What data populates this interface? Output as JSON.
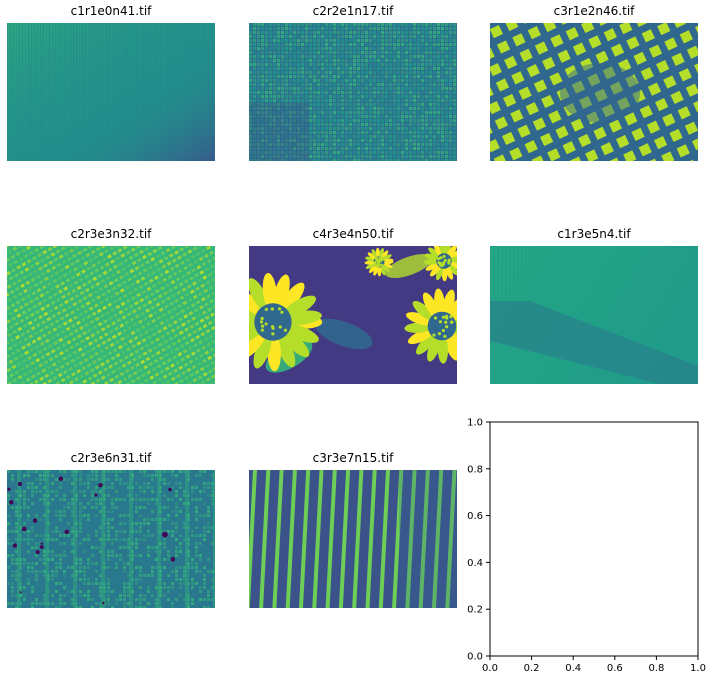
{
  "panels": [
    {
      "title": "c1r1e0n41.tif",
      "pattern": "linen-plain",
      "colors": [
        "#21908c",
        "#2a788e",
        "#35b779",
        "#3b528b"
      ]
    },
    {
      "title": "c2r2e1n17.tif",
      "pattern": "weave-grid",
      "colors": [
        "#2c728e",
        "#1f9e89",
        "#35b779",
        "#3b528b"
      ]
    },
    {
      "title": "c3r1e2n46.tif",
      "pattern": "gingham-checks",
      "colors": [
        "#31688e",
        "#6ece58",
        "#b5de2b",
        "#3e4989"
      ]
    },
    {
      "title": "c2r3e3n32.tif",
      "pattern": "burlap-weave",
      "colors": [
        "#35b779",
        "#6ece58",
        "#1f9e89",
        "#b5de2b"
      ]
    },
    {
      "title": "c4r3e4n50.tif",
      "pattern": "sunflowers",
      "colors": [
        "#443983",
        "#b5de2b",
        "#35b779",
        "#fde725",
        "#31688e",
        "#440154"
      ]
    },
    {
      "title": "c1r3e5n4.tif",
      "pattern": "diagonal-shade",
      "colors": [
        "#22a884",
        "#2a788e",
        "#1f9e89",
        "#3b528b"
      ]
    },
    {
      "title": "c2r3e6n31.tif",
      "pattern": "canvas-specks",
      "colors": [
        "#2a788e",
        "#35b779",
        "#3e4989",
        "#440154"
      ]
    },
    {
      "title": "c3r3e7n15.tif",
      "pattern": "vertical-stripes",
      "colors": [
        "#3b528b",
        "#6ece58",
        "#31688e",
        "#482878"
      ]
    }
  ],
  "chart_data": {
    "type": "table",
    "title": "",
    "grid": false,
    "empty_axes": {
      "xlim": [
        0.0,
        1.0
      ],
      "ylim": [
        0.0,
        1.0
      ],
      "xticks": [
        "0.0",
        "0.2",
        "0.4",
        "0.6",
        "0.8",
        "1.0"
      ],
      "yticks": [
        "0.0",
        "0.2",
        "0.4",
        "0.6",
        "0.8",
        "1.0"
      ]
    }
  }
}
